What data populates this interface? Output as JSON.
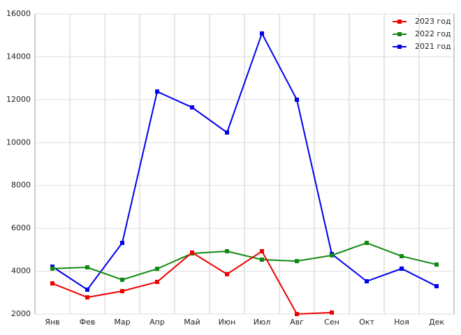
{
  "chart_data": {
    "type": "line",
    "categories": [
      "Янв",
      "Фев",
      "Мар",
      "Апр",
      "Май",
      "Июн",
      "Июл",
      "Авг",
      "Сен",
      "Окт",
      "Ноя",
      "Дек"
    ],
    "series": [
      {
        "name": "2023 год",
        "color": "#ee0000",
        "values": [
          3430,
          2780,
          3070,
          3500,
          4870,
          3860,
          4930,
          2000,
          2070,
          null,
          null,
          null
        ]
      },
      {
        "name": "2022 год",
        "color": "#118811",
        "values": [
          4120,
          4180,
          3600,
          4110,
          4830,
          4930,
          4540,
          4470,
          4740,
          5320,
          4700,
          4310
        ]
      },
      {
        "name": "2021 год",
        "color": "#0000ee",
        "values": [
          4210,
          3140,
          5320,
          12380,
          11640,
          10470,
          15090,
          12000,
          4800,
          3530,
          4120,
          3300
        ]
      }
    ],
    "ylim": [
      2000,
      16000
    ],
    "yticks": [
      2000,
      4000,
      6000,
      8000,
      10000,
      12000,
      14000,
      16000
    ],
    "grid": true,
    "legend": "top-right"
  }
}
